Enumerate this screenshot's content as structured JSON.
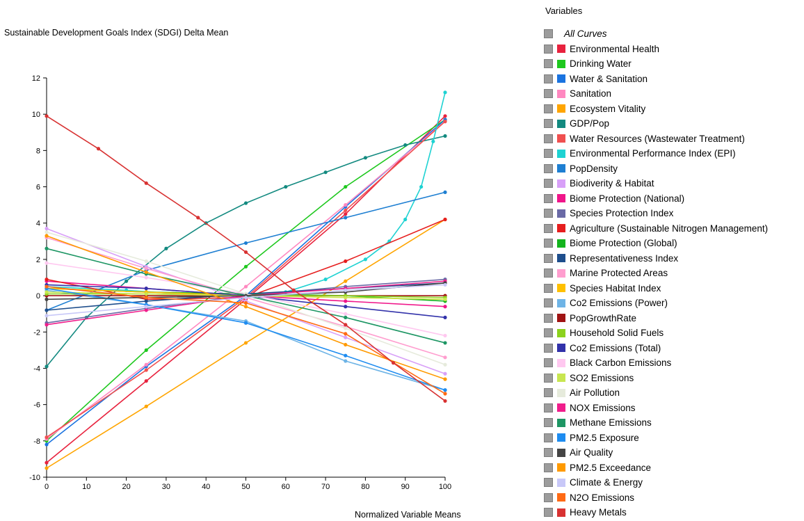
{
  "legend": {
    "title": "Variables",
    "all_label": "All Curves"
  },
  "chart_data": {
    "type": "line",
    "title": "Sustainable Development Goals Index (SDGI) Delta Mean",
    "xlabel": "Normalized Variable Means",
    "ylabel": "",
    "xlim": [
      0,
      100
    ],
    "ylim": [
      -10,
      12
    ],
    "x_ticks": [
      0,
      10,
      20,
      30,
      40,
      50,
      60,
      70,
      80,
      90,
      100
    ],
    "y_ticks": [
      -10,
      -8,
      -6,
      -4,
      -2,
      0,
      2,
      4,
      6,
      8,
      10,
      12
    ],
    "grid": false,
    "legend_position": "right",
    "series": [
      {
        "name": "Environmental Health",
        "color": "#e8223e",
        "x": [
          0,
          25,
          50,
          75,
          100
        ],
        "y": [
          -9.2,
          -4.7,
          -0.2,
          4.5,
          9.9
        ]
      },
      {
        "name": "Drinking Water",
        "color": "#1ec81e",
        "x": [
          0,
          25,
          50,
          75,
          100
        ],
        "y": [
          -8.0,
          -3.0,
          1.6,
          6.0,
          9.7
        ]
      },
      {
        "name": "Water & Sanitation",
        "color": "#1a73e0",
        "x": [
          0,
          25,
          50,
          75,
          100
        ],
        "y": [
          -8.2,
          -3.9,
          0.0,
          4.9,
          9.7
        ]
      },
      {
        "name": "Sanitation",
        "color": "#ff88c0",
        "x": [
          0,
          25,
          50,
          75,
          100
        ],
        "y": [
          -7.9,
          -3.8,
          0.5,
          5.0,
          9.6
        ]
      },
      {
        "name": "Ecosystem Vitality",
        "color": "#ffa500",
        "x": [
          0,
          25,
          50,
          75,
          100
        ],
        "y": [
          -9.5,
          -6.1,
          -2.6,
          0.8,
          4.2
        ]
      },
      {
        "name": "GDP/Pop",
        "color": "#138a80",
        "x": [
          0,
          10,
          20,
          30,
          40,
          50,
          60,
          70,
          80,
          90,
          100
        ],
        "y": [
          -3.9,
          -1.2,
          0.8,
          2.6,
          4.0,
          5.1,
          6.0,
          6.8,
          7.6,
          8.3,
          8.8
        ]
      },
      {
        "name": "Water Resources (Wastewater Treatment)",
        "color": "#f05050",
        "x": [
          0,
          25,
          50,
          75,
          100
        ],
        "y": [
          -7.8,
          -4.1,
          -0.1,
          4.7,
          9.6
        ]
      },
      {
        "name": "Environmental Performance Index (EPI)",
        "color": "#1ed2d2",
        "x": [
          0,
          20,
          40,
          60,
          70,
          80,
          86,
          90,
          94,
          97,
          100
        ],
        "y": [
          0.5,
          0.3,
          0.0,
          0.2,
          0.9,
          2.0,
          3.0,
          4.2,
          6.0,
          8.5,
          11.2
        ]
      },
      {
        "name": "PopDensity",
        "color": "#1e7fd2",
        "x": [
          0,
          25,
          50,
          75,
          100
        ],
        "y": [
          -0.8,
          1.4,
          2.9,
          4.3,
          5.7
        ]
      },
      {
        "name": "Biodiverity & Habitat",
        "color": "#d8a0f8",
        "x": [
          0,
          25,
          50,
          75,
          100
        ],
        "y": [
          3.7,
          1.6,
          -0.3,
          -2.3,
          -4.3
        ]
      },
      {
        "name": "Biome Protection (National)",
        "color": "#f0168a",
        "x": [
          0,
          25,
          50,
          75,
          100
        ],
        "y": [
          0.8,
          0.4,
          0.0,
          -0.3,
          -0.6
        ]
      },
      {
        "name": "Species Protection Index",
        "color": "#6a6aa6",
        "x": [
          0,
          25,
          50,
          75,
          100
        ],
        "y": [
          -1.5,
          -0.7,
          0.0,
          0.5,
          0.9
        ]
      },
      {
        "name": "Agriculture (Sustainable Nitrogen Management)",
        "color": "#e61e1e",
        "x": [
          0,
          25,
          50,
          75,
          100
        ],
        "y": [
          0.9,
          -0.2,
          -0.1,
          1.9,
          4.2
        ]
      },
      {
        "name": "Biome Protection (Global)",
        "color": "#14b41e",
        "x": [
          0,
          25,
          50,
          75,
          100
        ],
        "y": [
          0.4,
          0.2,
          0.1,
          0.0,
          -0.3
        ]
      },
      {
        "name": "Representativeness Index",
        "color": "#1e4e8c",
        "x": [
          0,
          25,
          50,
          75,
          100
        ],
        "y": [
          -0.8,
          -0.3,
          0.1,
          0.4,
          0.7
        ]
      },
      {
        "name": "Marine Protected Areas",
        "color": "#ff9ecf",
        "x": [
          0,
          25,
          50,
          75,
          100
        ],
        "y": [
          3.2,
          1.5,
          -0.1,
          -1.7,
          -3.4
        ]
      },
      {
        "name": "Species Habitat Index",
        "color": "#ffc000",
        "x": [
          0,
          25,
          50,
          75,
          100
        ],
        "y": [
          0.4,
          0.2,
          0.0,
          -0.1,
          -0.2
        ]
      },
      {
        "name": "Co2 Emissions (Power)",
        "color": "#6eb4e6",
        "x": [
          0,
          25,
          50,
          75,
          100
        ],
        "y": [
          0.3,
          -0.5,
          -1.4,
          -3.6,
          -5.2
        ]
      },
      {
        "name": "PopGrowthRate",
        "color": "#a01414",
        "x": [
          0,
          25,
          50,
          75,
          100
        ],
        "y": [
          0.0,
          0.0,
          0.0,
          0.0,
          0.0
        ]
      },
      {
        "name": "Household Solid Fuels",
        "color": "#8cd21e",
        "x": [
          0,
          25,
          50,
          75,
          100
        ],
        "y": [
          0.1,
          0.1,
          0.0,
          0.0,
          -0.1
        ]
      },
      {
        "name": "Co2 Emissions (Total)",
        "color": "#3232aa",
        "x": [
          0,
          25,
          50,
          75,
          100
        ],
        "y": [
          0.6,
          0.4,
          0.0,
          -0.6,
          -1.2
        ]
      },
      {
        "name": "Black Carbon Emissions",
        "color": "#ffc8f0",
        "x": [
          0,
          25,
          50,
          75,
          100
        ],
        "y": [
          1.8,
          1.0,
          0.1,
          -1.0,
          -2.2
        ]
      },
      {
        "name": "SO2 Emissions",
        "color": "#c8e650",
        "x": [
          0,
          25,
          50,
          75,
          100
        ],
        "y": [
          0.2,
          0.1,
          0.0,
          -0.1,
          -0.2
        ]
      },
      {
        "name": "Air Pollution",
        "color": "#e6ebdc",
        "x": [
          0,
          25,
          50,
          75,
          100
        ],
        "y": [
          3.5,
          1.9,
          0.1,
          -1.8,
          -3.8
        ]
      },
      {
        "name": "NOX Emissions",
        "color": "#f01e8c",
        "x": [
          0,
          25,
          50,
          75,
          100
        ],
        "y": [
          -1.6,
          -0.8,
          0.0,
          0.4,
          0.8
        ]
      },
      {
        "name": "Methane Emissions",
        "color": "#1e9664",
        "x": [
          0,
          25,
          50,
          75,
          100
        ],
        "y": [
          2.6,
          1.2,
          0.0,
          -1.2,
          -2.6
        ]
      },
      {
        "name": "PM2.5 Exposure",
        "color": "#1e8cf0",
        "x": [
          0,
          25,
          50,
          75,
          100
        ],
        "y": [
          0.4,
          -0.5,
          -1.5,
          -3.3,
          -5.2
        ]
      },
      {
        "name": "Air Quality",
        "color": "#444444",
        "x": [
          0,
          25,
          50,
          75,
          100
        ],
        "y": [
          -0.2,
          -0.1,
          0.0,
          0.2,
          0.7
        ]
      },
      {
        "name": "PM2.5 Exceedance",
        "color": "#ff9a00",
        "x": [
          0,
          25,
          50,
          75,
          100
        ],
        "y": [
          3.3,
          1.3,
          -0.6,
          -2.7,
          -4.6
        ]
      },
      {
        "name": "Climate & Energy",
        "color": "#c8c8f8",
        "x": [
          0,
          25,
          50,
          75,
          100
        ],
        "y": [
          -1.1,
          -0.6,
          -0.1,
          0.3,
          0.6
        ]
      },
      {
        "name": "N2O Emissions",
        "color": "#ff6a14",
        "x": [
          0,
          25,
          50,
          75,
          100
        ],
        "y": [
          0.5,
          -0.1,
          -0.4,
          -2.1,
          -5.4
        ]
      },
      {
        "name": "Heavy Metals",
        "color": "#d83232",
        "x": [
          0,
          13,
          25,
          38,
          50,
          62,
          75,
          87,
          100
        ],
        "y": [
          9.9,
          8.1,
          6.2,
          4.3,
          2.4,
          0.3,
          -1.6,
          -3.7,
          -5.8
        ]
      }
    ]
  }
}
